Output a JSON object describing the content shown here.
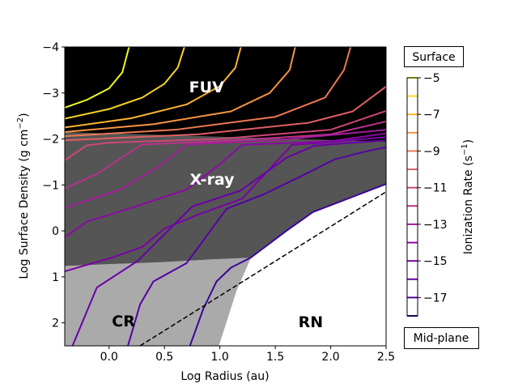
{
  "chart_data": {
    "type": "line",
    "title": "",
    "xlabel": "Log Radius (au)",
    "ylabel": "Log Surface Density (g cm",
    "ylabel_sup": "−2",
    "ylabel_end": ")",
    "xlim": [
      -0.4,
      2.5
    ],
    "ylim": [
      -4,
      2.5
    ],
    "y_inverted": true,
    "xticks": [
      0.0,
      0.5,
      1.0,
      1.5,
      2.0,
      2.5
    ],
    "xtick_labels": [
      "0.0",
      "0.5",
      "1.0",
      "1.5",
      "2.0",
      "2.5"
    ],
    "yticks": [
      -4,
      -3,
      -2,
      -1,
      0,
      1,
      2
    ],
    "ytick_labels": [
      "−4",
      "−3",
      "−2",
      "−1",
      "0",
      "1",
      "2"
    ],
    "regions": [
      {
        "name": "fuv-region",
        "color": "#000000",
        "points": [
          [
            -0.4,
            -4
          ],
          [
            2.5,
            -4
          ],
          [
            2.5,
            2.5
          ],
          [
            -0.4,
            2.5
          ]
        ]
      },
      {
        "name": "xray-region",
        "color": "#555555",
        "points": [
          [
            -0.4,
            -2.15
          ],
          [
            2.5,
            -1.94
          ],
          [
            2.5,
            -1.02
          ],
          [
            1.84,
            -0.41
          ],
          [
            1.28,
            0.58
          ],
          [
            0.9,
            0.62
          ],
          [
            0.46,
            0.68
          ],
          [
            0.0,
            0.72
          ],
          [
            -0.4,
            0.76
          ]
        ]
      },
      {
        "name": "cr-region",
        "color": "#aaaaaa",
        "points": [
          [
            -0.4,
            0.76
          ],
          [
            0.0,
            0.72
          ],
          [
            0.46,
            0.68
          ],
          [
            0.9,
            0.62
          ],
          [
            1.28,
            0.58
          ],
          [
            1.15,
            1.3
          ],
          [
            0.99,
            2.5
          ],
          [
            -0.4,
            2.5
          ]
        ]
      },
      {
        "name": "rn-region",
        "color": "#ffffff",
        "points": [
          [
            1.28,
            0.58
          ],
          [
            1.84,
            -0.41
          ],
          [
            2.5,
            -1.02
          ],
          [
            2.5,
            2.5
          ],
          [
            0.99,
            2.5
          ],
          [
            1.15,
            1.3
          ]
        ]
      }
    ],
    "region_labels": [
      {
        "text": "FUV",
        "x": 0.88,
        "y": -3.14,
        "color": "#ffffff"
      },
      {
        "text": "X-ray",
        "x": 0.93,
        "y": -1.13,
        "color": "#ffffff"
      },
      {
        "text": "CR",
        "x": 0.13,
        "y": 1.95,
        "color": "#000000"
      },
      {
        "text": "RN",
        "x": 1.82,
        "y": 1.97,
        "color": "#000000"
      }
    ],
    "dashed_line": [
      [
        0.28,
        2.5
      ],
      [
        2.5,
        -0.85
      ]
    ],
    "series": [
      {
        "name": "-5",
        "color": "#f0f921",
        "points": [
          [
            -0.4,
            -2.68
          ],
          [
            -0.2,
            -2.85
          ],
          [
            0.0,
            -3.1
          ],
          [
            0.12,
            -3.45
          ],
          [
            0.18,
            -4
          ]
        ]
      },
      {
        "name": "-6",
        "color": "#fbd524",
        "points": [
          [
            -0.4,
            -2.44
          ],
          [
            0.0,
            -2.65
          ],
          [
            0.3,
            -2.9
          ],
          [
            0.5,
            -3.2
          ],
          [
            0.62,
            -3.55
          ],
          [
            0.68,
            -4
          ]
        ]
      },
      {
        "name": "-7",
        "color": "#fdb42f",
        "points": [
          [
            -0.4,
            -2.25
          ],
          [
            0.2,
            -2.45
          ],
          [
            0.7,
            -2.75
          ],
          [
            1.0,
            -3.15
          ],
          [
            1.14,
            -3.55
          ],
          [
            1.19,
            -4
          ]
        ]
      },
      {
        "name": "-8",
        "color": "#f89540",
        "points": [
          [
            -0.4,
            -2.15
          ],
          [
            0.4,
            -2.32
          ],
          [
            1.1,
            -2.6
          ],
          [
            1.45,
            -3.0
          ],
          [
            1.63,
            -3.5
          ],
          [
            1.68,
            -4
          ]
        ]
      },
      {
        "name": "-9",
        "color": "#ed7953",
        "points": [
          [
            -0.4,
            -2.06
          ],
          [
            0.6,
            -2.2
          ],
          [
            1.5,
            -2.48
          ],
          [
            1.95,
            -2.9
          ],
          [
            2.12,
            -3.5
          ],
          [
            2.18,
            -4
          ]
        ]
      },
      {
        "name": "-10",
        "color": "#de5f65",
        "points": [
          [
            -0.4,
            -1.97
          ],
          [
            0.8,
            -2.1
          ],
          [
            1.8,
            -2.35
          ],
          [
            2.2,
            -2.6
          ],
          [
            2.5,
            -3.14
          ]
        ]
      },
      {
        "name": "-11",
        "color": "#cc4778",
        "points": [
          [
            -0.4,
            -1.53
          ],
          [
            -0.3,
            -1.7
          ],
          [
            -0.2,
            -1.86
          ],
          [
            0.0,
            -1.92
          ],
          [
            1.0,
            -2.0
          ],
          [
            2.0,
            -2.2
          ],
          [
            2.5,
            -2.61
          ]
        ]
      },
      {
        "name": "-12",
        "color": "#b83289",
        "points": [
          [
            -0.4,
            -0.92
          ],
          [
            -0.1,
            -1.25
          ],
          [
            0.15,
            -1.65
          ],
          [
            0.3,
            -1.88
          ],
          [
            1.0,
            -1.95
          ],
          [
            2.0,
            -2.1
          ],
          [
            2.5,
            -2.38
          ]
        ]
      },
      {
        "name": "-13",
        "color": "#a21d9a",
        "points": [
          [
            -0.4,
            -0.5
          ],
          [
            0.1,
            -0.9
          ],
          [
            0.45,
            -1.4
          ],
          [
            0.7,
            -1.88
          ],
          [
            1.5,
            -1.97
          ],
          [
            2.5,
            -2.2
          ]
        ]
      },
      {
        "name": "-14",
        "color": "#8b0aa5",
        "points": [
          [
            -0.4,
            0.14
          ],
          [
            -0.2,
            -0.2
          ],
          [
            0.2,
            -0.5
          ],
          [
            0.7,
            -0.9
          ],
          [
            1.0,
            -1.45
          ],
          [
            1.2,
            -1.87
          ],
          [
            2.0,
            -1.95
          ],
          [
            2.5,
            -2.12
          ]
        ]
      },
      {
        "name": "-15",
        "color": "#7a02a8",
        "points": [
          [
            -0.4,
            0.88
          ],
          [
            0.0,
            0.6
          ],
          [
            0.3,
            0.35
          ],
          [
            0.5,
            -0.05
          ],
          [
            0.8,
            -0.35
          ],
          [
            1.2,
            -0.7
          ],
          [
            1.45,
            -1.35
          ],
          [
            1.65,
            -1.87
          ],
          [
            2.0,
            -1.93
          ],
          [
            2.5,
            -2.04
          ]
        ]
      },
      {
        "name": "-16",
        "color": "#6a00a8",
        "points": [
          [
            -0.33,
            2.5
          ],
          [
            -0.11,
            1.23
          ],
          [
            0.26,
            0.65
          ],
          [
            0.75,
            -0.53
          ],
          [
            1.19,
            -0.88
          ],
          [
            1.6,
            -1.59
          ],
          [
            1.85,
            -1.85
          ],
          [
            2.1,
            -1.9
          ],
          [
            2.5,
            -1.97
          ]
        ]
      },
      {
        "name": "-17",
        "color": "#5402a3",
        "points": [
          [
            0.17,
            2.5
          ],
          [
            0.28,
            1.6
          ],
          [
            0.4,
            1.1
          ],
          [
            0.7,
            0.7
          ],
          [
            1.06,
            -0.48
          ],
          [
            1.4,
            -0.8
          ],
          [
            1.7,
            -1.15
          ],
          [
            2.03,
            -1.55
          ],
          [
            2.3,
            -1.72
          ],
          [
            2.5,
            -1.82
          ]
        ]
      },
      {
        "name": "-18",
        "color": "#3a049a",
        "points": [
          [
            0.73,
            2.5
          ],
          [
            0.85,
            1.7
          ],
          [
            0.97,
            1.1
          ],
          [
            1.1,
            0.8
          ],
          [
            1.28,
            0.58
          ],
          [
            1.6,
            0.0
          ],
          [
            1.84,
            -0.41
          ],
          [
            2.5,
            -1.02
          ]
        ]
      }
    ],
    "colorbar": {
      "label": "Ionization Rate (s",
      "label_sup": "−1",
      "label_end": ")",
      "range": [
        -5,
        -18
      ],
      "levels": [
        -5,
        -6,
        -7,
        -8,
        -9,
        -10,
        -11,
        -12,
        -13,
        -14,
        -15,
        -16,
        -17,
        -18
      ],
      "colors": [
        "#f0f921",
        "#fbd524",
        "#fdb42f",
        "#f89540",
        "#ed7953",
        "#de5f65",
        "#cc4778",
        "#b83289",
        "#a21d9a",
        "#8b0aa5",
        "#7a02a8",
        "#6a00a8",
        "#5402a3",
        "#3a049a"
      ],
      "ticks": [
        -5,
        -7,
        -9,
        -11,
        -13,
        -15,
        -17
      ],
      "tick_labels": [
        "−5",
        "−7",
        "−9",
        "−11",
        "−13",
        "−15",
        "−17"
      ],
      "top_label": "Surface",
      "bottom_label": "Mid-plane"
    }
  }
}
